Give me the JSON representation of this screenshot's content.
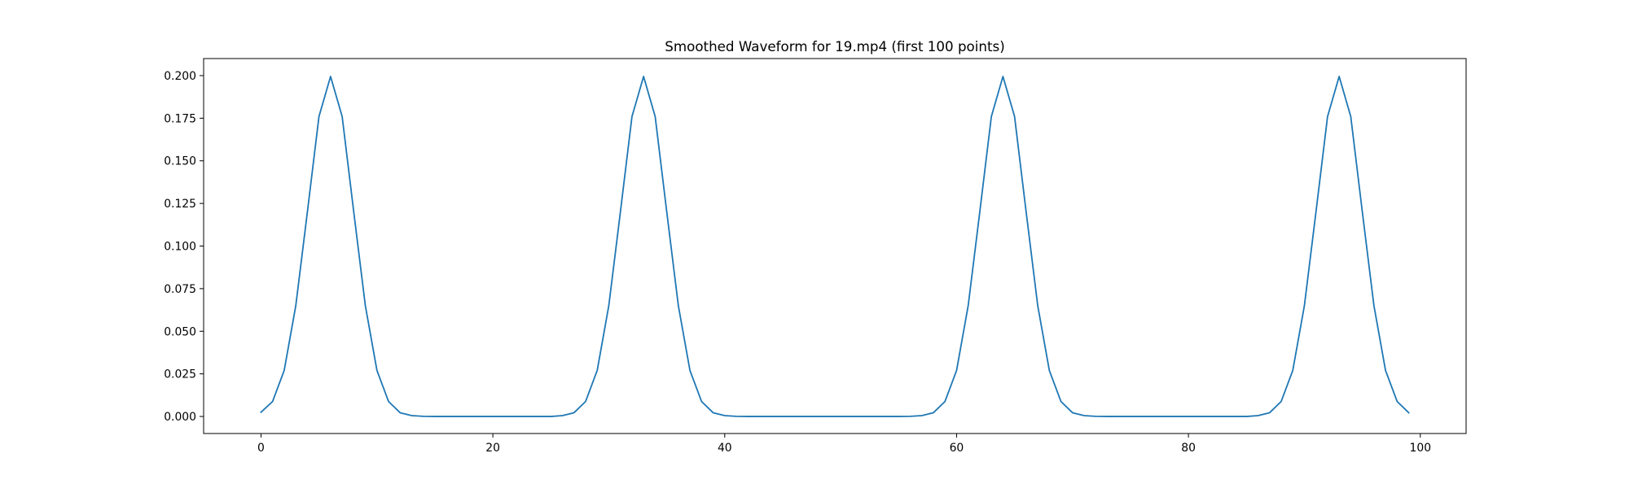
{
  "chart_data": {
    "type": "line",
    "title": "Smoothed Waveform for 19.mp4 (first 100 points)",
    "xlabel": "",
    "ylabel": "",
    "xlim": [
      -4.95,
      103.95
    ],
    "ylim": [
      -0.01,
      0.21
    ],
    "grid": false,
    "legend": "none",
    "line_color": "#1f77b4",
    "xticks": [
      0,
      20,
      40,
      60,
      80,
      100
    ],
    "xtick_labels": [
      "0",
      "20",
      "40",
      "60",
      "80",
      "100"
    ],
    "yticks": [
      0.0,
      0.025,
      0.05,
      0.075,
      0.1,
      0.125,
      0.15,
      0.175,
      0.2
    ],
    "ytick_labels": [
      "0.000",
      "0.025",
      "0.050",
      "0.075",
      "0.100",
      "0.125",
      "0.150",
      "0.175",
      "0.200"
    ],
    "series": [
      {
        "x": [
          0,
          1,
          2,
          3,
          4,
          5,
          6,
          7,
          8,
          9,
          10,
          11,
          12,
          13,
          14,
          15,
          16,
          17,
          18,
          19,
          20,
          21,
          22,
          23,
          24,
          25,
          26,
          27,
          28,
          29,
          30,
          31,
          32,
          33,
          34,
          35,
          36,
          37,
          38,
          39,
          40,
          41,
          42,
          43,
          44,
          45,
          46,
          47,
          48,
          49,
          50,
          51,
          52,
          53,
          54,
          55,
          56,
          57,
          58,
          59,
          60,
          61,
          62,
          63,
          64,
          65,
          66,
          67,
          68,
          69,
          70,
          71,
          72,
          73,
          74,
          75,
          76,
          77,
          78,
          79,
          80,
          81,
          82,
          83,
          84,
          85,
          86,
          87,
          88,
          89,
          90,
          91,
          92,
          93,
          94,
          95,
          96,
          97,
          98,
          99
        ],
        "values": [
          0.0025,
          0.0088,
          0.027,
          0.065,
          0.12,
          0.176,
          0.1995,
          0.176,
          0.12,
          0.065,
          0.027,
          0.0088,
          0.0022,
          0.0005,
          0.0001,
          0,
          0,
          0,
          0,
          0,
          0,
          0,
          0,
          0,
          0,
          0,
          0.0005,
          0.0022,
          0.0088,
          0.027,
          0.065,
          0.12,
          0.176,
          0.1995,
          0.176,
          0.12,
          0.065,
          0.027,
          0.0088,
          0.0022,
          0.0005,
          0.0001,
          0,
          0,
          0,
          0,
          0,
          0,
          0,
          0,
          0,
          0,
          0,
          0,
          0,
          0,
          0.0001,
          0.0005,
          0.0022,
          0.0088,
          0.027,
          0.065,
          0.12,
          0.176,
          0.1995,
          0.176,
          0.12,
          0.065,
          0.027,
          0.0088,
          0.0022,
          0.0005,
          0.0001,
          0,
          0,
          0,
          0,
          0,
          0,
          0,
          0,
          0,
          0,
          0,
          0,
          0,
          0.0005,
          0.0022,
          0.0088,
          0.027,
          0.065,
          0.12,
          0.176,
          0.1995,
          0.176,
          0.12,
          0.065,
          0.027,
          0.0088,
          0.0022
        ]
      }
    ]
  }
}
